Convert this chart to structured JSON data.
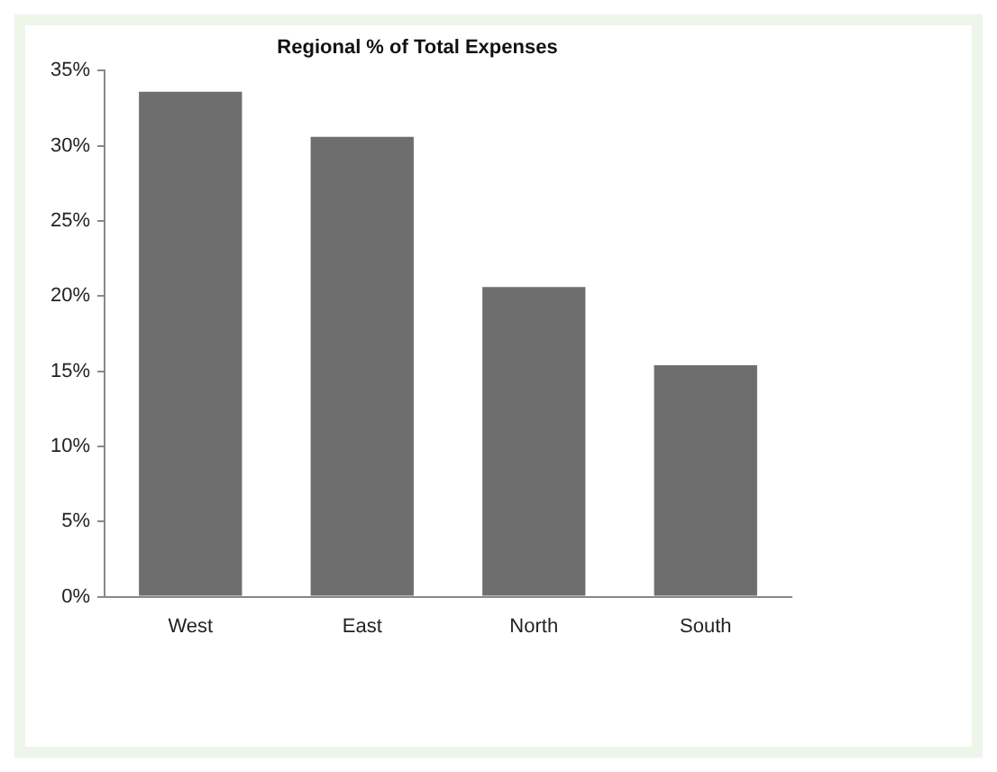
{
  "chart_data": {
    "type": "bar",
    "title": "Regional % of Total Expenses",
    "categories": [
      "West",
      "East",
      "North",
      "South"
    ],
    "values": [
      33.6,
      30.6,
      20.6,
      15.4
    ],
    "color": "#6e6e6e",
    "ylim": [
      0,
      35
    ],
    "yticks": [
      {
        "value": 0,
        "label": "0%"
      },
      {
        "value": 5,
        "label": "5%"
      },
      {
        "value": 10,
        "label": "10%"
      },
      {
        "value": 15,
        "label": "15%"
      },
      {
        "value": 20,
        "label": "20%"
      },
      {
        "value": 25,
        "label": "25%"
      },
      {
        "value": 30,
        "label": "30%"
      },
      {
        "value": 35,
        "label": "35%"
      }
    ],
    "grid": false,
    "legend": false
  }
}
